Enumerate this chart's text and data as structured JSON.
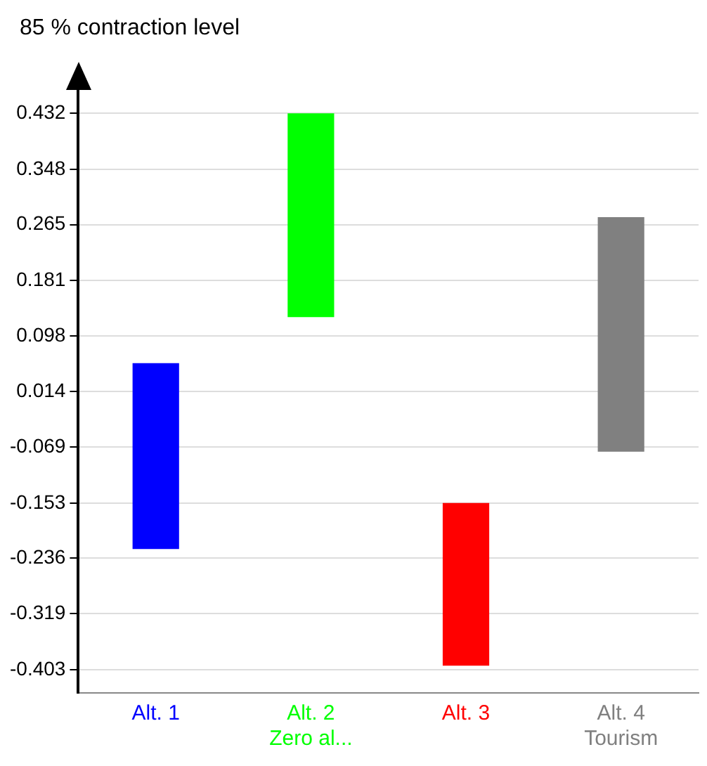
{
  "chart_data": {
    "type": "bar",
    "ylabel": "85 % contraction level",
    "categories": [
      "Alt. 1",
      "Alt. 2\nZero al...",
      "Alt. 3",
      "Alt. 4\nTourism"
    ],
    "base": [
      -0.222,
      0.126,
      -0.397,
      -0.076
    ],
    "values": [
      0.279,
      0.306,
      0.244,
      0.352
    ],
    "colors": [
      "#0000ff",
      "#00ff00",
      "#ff0000",
      "#808080"
    ],
    "ylim": [
      -0.438,
      0.467
    ],
    "yticks": [
      -0.403,
      -0.319,
      -0.236,
      -0.153,
      -0.069,
      0.014,
      0.098,
      0.181,
      0.265,
      0.348,
      0.432
    ],
    "grid": "y"
  }
}
